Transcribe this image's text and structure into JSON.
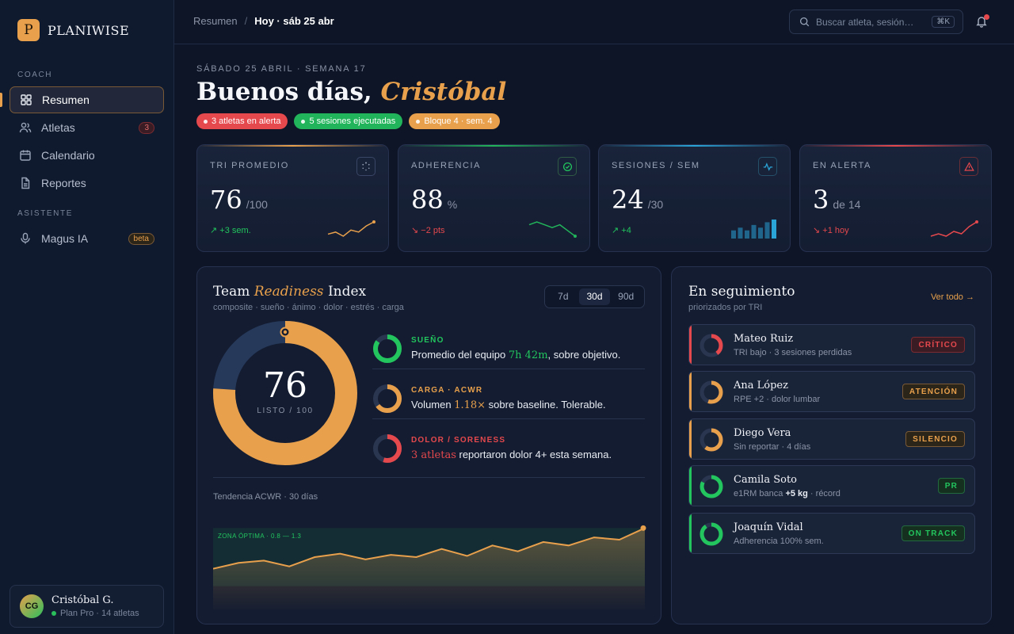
{
  "brand": {
    "logo_letter": "P",
    "name": "PLANIWISE"
  },
  "sidebar": {
    "section_coach": "COACH",
    "section_assistant": "ASISTENTE",
    "items": [
      {
        "label": "Resumen",
        "icon": "grid-icon",
        "active": true
      },
      {
        "label": "Atletas",
        "icon": "users-icon",
        "badge": "3"
      },
      {
        "label": "Calendario",
        "icon": "calendar-icon"
      },
      {
        "label": "Reportes",
        "icon": "document-icon"
      },
      {
        "label": "Magus IA",
        "icon": "microphone-icon",
        "badge": "beta"
      }
    ],
    "user": {
      "initials": "CG",
      "name": "Cristóbal G.",
      "plan": "Plan Pro · 14 atletas"
    }
  },
  "topbar": {
    "crumb_root": "Resumen",
    "crumb_separator": "/",
    "crumb_current": "Hoy · sáb 25 abr",
    "search_placeholder": "Buscar atleta, sesión…",
    "search_shortcut": "⌘K"
  },
  "header": {
    "eyebrow": "SÁBADO 25 ABRIL · SEMANA 17",
    "greeting": "Buenos días,",
    "name": "Cristóbal",
    "pills": [
      {
        "label": "3 atletas en alerta",
        "color": "#e5484d"
      },
      {
        "label": "5 sesiones ejecutadas",
        "color": "#22b45a"
      },
      {
        "label": "Bloque 4 · sem. 4",
        "color": "#e8a04c"
      }
    ]
  },
  "kpis": [
    {
      "label": "TRI PROMEDIO",
      "value": "76",
      "unit": "/100",
      "delta": "↗ +3 sem.",
      "trend": "up",
      "color": "#e8a04c",
      "icon": "spinner-icon",
      "spark": [
        4,
        5,
        3,
        6,
        5,
        8,
        10
      ]
    },
    {
      "label": "ADHERENCIA",
      "value": "88",
      "unit": "%",
      "delta": "↘ −2 pts",
      "trend": "down",
      "color": "#22b45a",
      "icon": "check-circle-icon",
      "spark": [
        8,
        9,
        8,
        7,
        8,
        6,
        4
      ]
    },
    {
      "label": "SESIONES / SEM",
      "value": "24",
      "unit": "/30",
      "delta": "↗ +4",
      "trend": "up",
      "color": "#2aa3d6",
      "icon": "activity-icon",
      "bars": [
        3,
        4,
        3,
        5,
        4,
        6,
        7
      ]
    },
    {
      "label": "EN ALERTA",
      "value": "3",
      "unit": "de 14",
      "delta": "↘ +1 hoy",
      "trend": "down",
      "color": "#e5484d",
      "icon": "alert-triangle-icon",
      "spark": [
        3,
        4,
        3,
        5,
        4,
        7,
        9
      ]
    }
  ],
  "readiness": {
    "title_pre": "Team",
    "title_em": "Readiness",
    "title_post": "Index",
    "subtitle": "composite · sueño · ánimo · dolor · estrés · carga",
    "ranges": [
      "7d",
      "30d",
      "90d"
    ],
    "active_range": "30d",
    "score": "76",
    "score_label": "LISTO / 100",
    "score_value": 76,
    "metrics": [
      {
        "title": "SUEÑO",
        "color": "#22c55e",
        "fraction": 0.85,
        "text_pre": "Promedio del equipo",
        "highlight": "7h 42m",
        "text_post": ", sobre objetivo."
      },
      {
        "title": "CARGA · ACWR",
        "color": "#e8a04c",
        "fraction": 0.65,
        "text_pre": "Volumen",
        "highlight": "1.18×",
        "text_post": " sobre baseline. Tolerable."
      },
      {
        "title": "DOLOR / SORENESS",
        "color": "#e5484d",
        "fraction": 0.55,
        "text_pre": "",
        "highlight": "3 atletas",
        "text_post": " reportaron dolor 4+ esta semana."
      }
    ],
    "trend_label": "Tendencia ACWR · 30 días",
    "zone_label": "ZONA ÓPTIMA · 0.8 — 1.3"
  },
  "acwr_trend": [
    0.95,
    1.0,
    1.02,
    0.97,
    1.05,
    1.08,
    1.03,
    1.07,
    1.05,
    1.12,
    1.06,
    1.15,
    1.1,
    1.18,
    1.15,
    1.22,
    1.2,
    1.3
  ],
  "follow": {
    "title": "En seguimiento",
    "subtitle": "priorizados por TRI",
    "link": "Ver todo →",
    "rows": [
      {
        "name": "Mateo Ruiz",
        "sub_pre": "TRI bajo · 3 sesiones perdidas",
        "sub_bold": "",
        "sub_post": "",
        "tag": "CRÍTICO",
        "color": "#e5484d",
        "fraction": 0.4
      },
      {
        "name": "Ana López",
        "sub_pre": "RPE +2 · dolor lumbar",
        "sub_bold": "",
        "sub_post": "",
        "tag": "ATENCIÓN",
        "color": "#e8a04c",
        "fraction": 0.55
      },
      {
        "name": "Diego Vera",
        "sub_pre": "Sin reportar · 4 días",
        "sub_bold": "",
        "sub_post": "",
        "tag": "SILENCIO",
        "color": "#e8a04c",
        "fraction": 0.6
      },
      {
        "name": "Camila Soto",
        "sub_pre": "e1RM banca ",
        "sub_bold": "+5 kg",
        "sub_post": " · récord",
        "tag": "PR",
        "color": "#22c55e",
        "fraction": 0.82
      },
      {
        "name": "Joaquín Vidal",
        "sub_pre": "Adherencia 100% sem.",
        "sub_bold": "",
        "sub_post": "",
        "tag": "ON TRACK",
        "color": "#22c55e",
        "fraction": 0.9
      }
    ]
  }
}
